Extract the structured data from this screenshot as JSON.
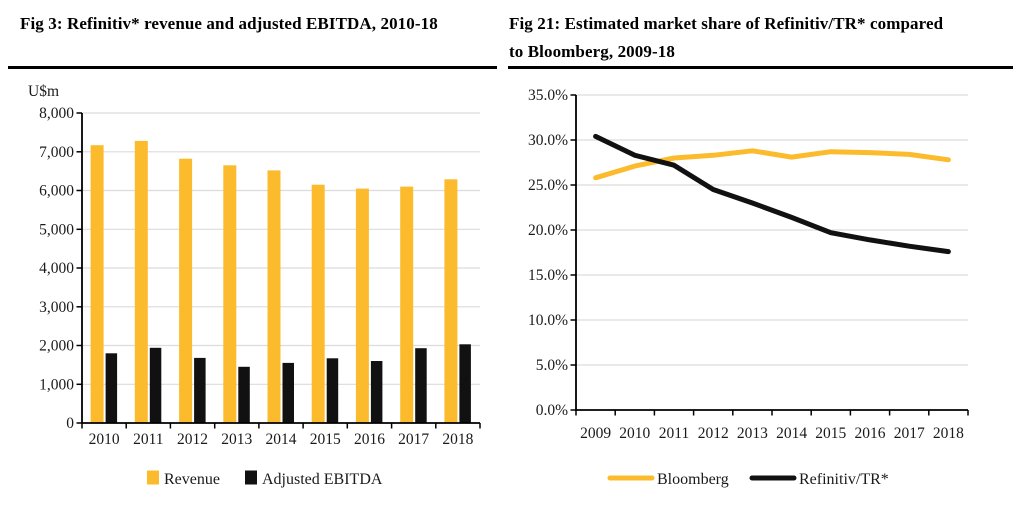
{
  "page": {
    "background": "#ffffff"
  },
  "colors": {
    "accent_yellow": "#FCBB2D",
    "series_black": "#111111",
    "gridline": "#DCDCDC",
    "axis": "#000000",
    "tick_text": "#1a1a1a"
  },
  "chart_data": [
    {
      "type": "bar",
      "title": "Fig 3: Refinitiv* revenue and adjusted EBITDA, 2010-18",
      "ylabel": "U$m",
      "categories": [
        "2010",
        "2011",
        "2012",
        "2013",
        "2014",
        "2015",
        "2016",
        "2017",
        "2018"
      ],
      "series": [
        {
          "name": "Revenue",
          "color": "#FCBB2D",
          "values": [
            7170,
            7280,
            6820,
            6650,
            6520,
            6150,
            6050,
            6100,
            6290
          ]
        },
        {
          "name": "Adjusted EBITDA",
          "color": "#111111",
          "values": [
            1800,
            1940,
            1680,
            1450,
            1550,
            1670,
            1600,
            1930,
            2030
          ]
        }
      ],
      "ylim": [
        0,
        8000
      ],
      "ytick_step": 1000,
      "ytick_labels": [
        "0",
        "1,000",
        "2,000",
        "3,000",
        "4,000",
        "5,000",
        "6,000",
        "7,000",
        "8,000"
      ],
      "grid": true,
      "legend_position": "bottom"
    },
    {
      "type": "line",
      "title": "Fig 21: Estimated market share of Refinitiv/TR* compared to Bloomberg, 2009-18",
      "ylabel": "",
      "categories": [
        "2009",
        "2010",
        "2011",
        "2012",
        "2013",
        "2014",
        "2015",
        "2016",
        "2017",
        "2018"
      ],
      "series": [
        {
          "name": "Bloomberg",
          "color": "#FCBB2D",
          "values": [
            25.8,
            27.1,
            28.0,
            28.3,
            28.8,
            28.1,
            28.7,
            28.6,
            28.4,
            27.8
          ]
        },
        {
          "name": "Refinitiv/TR*",
          "color": "#111111",
          "values": [
            30.4,
            28.3,
            27.2,
            24.5,
            23.0,
            21.4,
            19.7,
            18.9,
            18.2,
            17.6
          ]
        }
      ],
      "ylim": [
        0,
        35
      ],
      "ytick_step": 5,
      "ytick_labels": [
        "0.0%",
        "5.0%",
        "10.0%",
        "15.0%",
        "20.0%",
        "25.0%",
        "30.0%",
        "35.0%"
      ],
      "grid": true,
      "legend_position": "bottom"
    }
  ]
}
